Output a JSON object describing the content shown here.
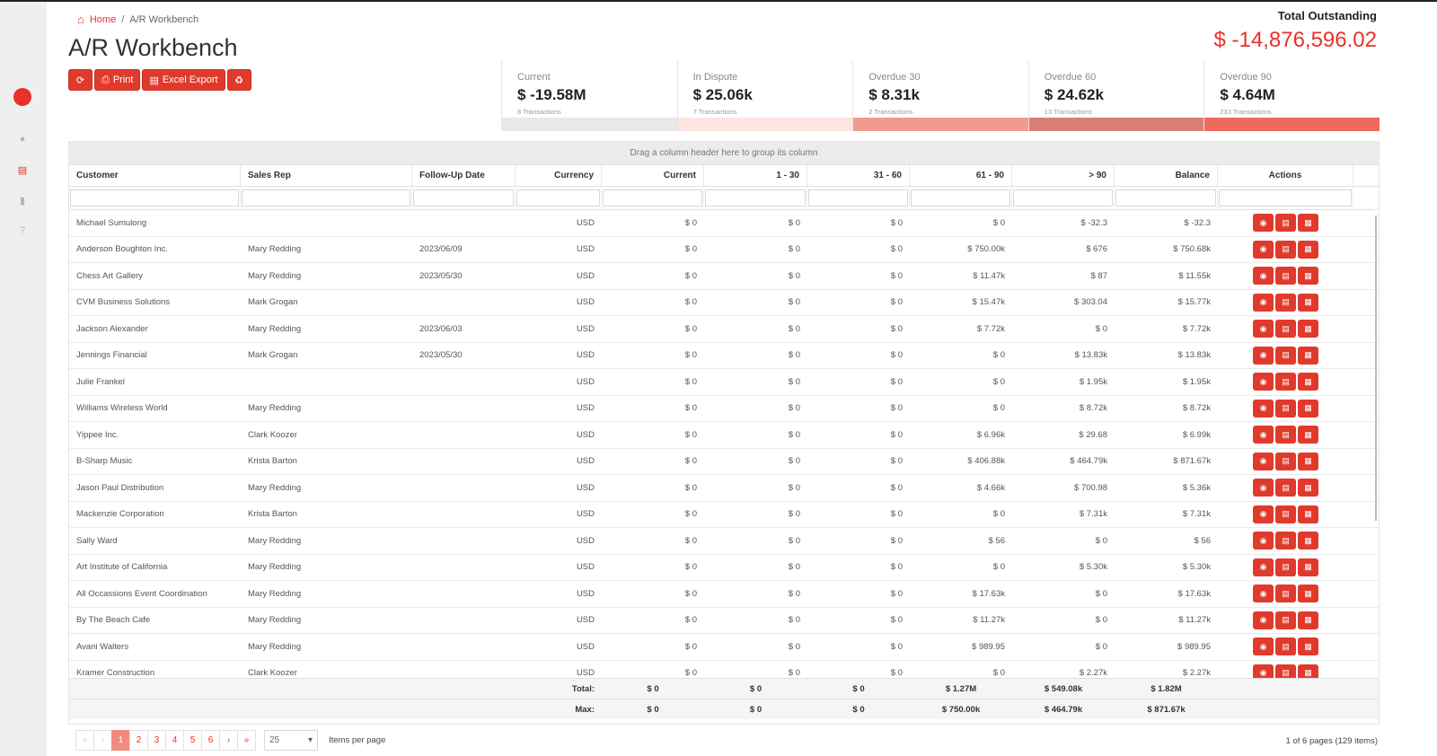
{
  "breadcrumb": {
    "home": "Home",
    "separator": "/",
    "current": "A/R Workbench"
  },
  "page_title": "A/R Workbench",
  "toolbar": {
    "print": "Print",
    "excel": "Excel Export"
  },
  "total": {
    "label": "Total Outstanding",
    "value": "$ -14,876,596.02"
  },
  "cards": [
    {
      "label": "Current",
      "value": "$ -19.58M",
      "transactions": "8 Transactions",
      "bar_color": "#e8e8e8"
    },
    {
      "label": "In Dispute",
      "value": "$ 25.06k",
      "transactions": "7 Transactions",
      "bar_color": "#fde4e1"
    },
    {
      "label": "Overdue 30",
      "value": "$ 8.31k",
      "transactions": "2 Transactions",
      "bar_color": "#f19a8e"
    },
    {
      "label": "Overdue 60",
      "value": "$ 24.62k",
      "transactions": "13 Transactions",
      "bar_color": "#d87f75"
    },
    {
      "label": "Overdue 90",
      "value": "$ 4.64M",
      "transactions": "233 Transactions",
      "bar_color": "#ee6b5c"
    }
  ],
  "grid": {
    "group_hint": "Drag a column header here to group its column",
    "columns": [
      "Customer",
      "Sales Rep",
      "Follow-Up Date",
      "Currency",
      "Current",
      "1 - 30",
      "31 - 60",
      "61 - 90",
      "> 90",
      "Balance",
      "Actions"
    ],
    "rows": [
      [
        "Michael Sumulong",
        "",
        "",
        "USD",
        "$ 0",
        "$ 0",
        "$ 0",
        "$ 0",
        "$ -32.3",
        "$ -32.3"
      ],
      [
        "Anderson Boughton Inc.",
        "Mary Redding",
        "2023/06/09",
        "USD",
        "$ 0",
        "$ 0",
        "$ 0",
        "$ 750.00k",
        "$ 676",
        "$ 750.68k"
      ],
      [
        "Chess Art Gallery",
        "Mary Redding",
        "2023/05/30",
        "USD",
        "$ 0",
        "$ 0",
        "$ 0",
        "$ 11.47k",
        "$ 87",
        "$ 11.55k"
      ],
      [
        "CVM Business Solutions",
        "Mark Grogan",
        "",
        "USD",
        "$ 0",
        "$ 0",
        "$ 0",
        "$ 15.47k",
        "$ 303.04",
        "$ 15.77k"
      ],
      [
        "Jackson Alexander",
        "Mary Redding",
        "2023/06/03",
        "USD",
        "$ 0",
        "$ 0",
        "$ 0",
        "$ 7.72k",
        "$ 0",
        "$ 7.72k"
      ],
      [
        "Jennings Financial",
        "Mark Grogan",
        "2023/05/30",
        "USD",
        "$ 0",
        "$ 0",
        "$ 0",
        "$ 0",
        "$ 13.83k",
        "$ 13.83k"
      ],
      [
        "Julie Frankel",
        "",
        "",
        "USD",
        "$ 0",
        "$ 0",
        "$ 0",
        "$ 0",
        "$ 1.95k",
        "$ 1.95k"
      ],
      [
        "Williams Wireless World",
        "Mary Redding",
        "",
        "USD",
        "$ 0",
        "$ 0",
        "$ 0",
        "$ 0",
        "$ 8.72k",
        "$ 8.72k"
      ],
      [
        "Yippee Inc.",
        "Clark Koozer",
        "",
        "USD",
        "$ 0",
        "$ 0",
        "$ 0",
        "$ 6.96k",
        "$ 29.68",
        "$ 6.99k"
      ],
      [
        "B-Sharp Music",
        "Krista Barton",
        "",
        "USD",
        "$ 0",
        "$ 0",
        "$ 0",
        "$ 406.88k",
        "$ 464.79k",
        "$ 871.67k"
      ],
      [
        "Jason Paul Distribution",
        "Mary Redding",
        "",
        "USD",
        "$ 0",
        "$ 0",
        "$ 0",
        "$ 4.66k",
        "$ 700.98",
        "$ 5.36k"
      ],
      [
        "Mackenzie Corporation",
        "Krista Barton",
        "",
        "USD",
        "$ 0",
        "$ 0",
        "$ 0",
        "$ 0",
        "$ 7.31k",
        "$ 7.31k"
      ],
      [
        "Sally Ward",
        "Mary Redding",
        "",
        "USD",
        "$ 0",
        "$ 0",
        "$ 0",
        "$ 56",
        "$ 0",
        "$ 56"
      ],
      [
        "Art Institute of California",
        "Mary Redding",
        "",
        "USD",
        "$ 0",
        "$ 0",
        "$ 0",
        "$ 0",
        "$ 5.30k",
        "$ 5.30k"
      ],
      [
        "All Occassions Event Coordination",
        "Mary Redding",
        "",
        "USD",
        "$ 0",
        "$ 0",
        "$ 0",
        "$ 17.63k",
        "$ 0",
        "$ 17.63k"
      ],
      [
        "By The Beach Cafe",
        "Mary Redding",
        "",
        "USD",
        "$ 0",
        "$ 0",
        "$ 0",
        "$ 11.27k",
        "$ 0",
        "$ 11.27k"
      ],
      [
        "Avani Walters",
        "Mary Redding",
        "",
        "USD",
        "$ 0",
        "$ 0",
        "$ 0",
        "$ 989.95",
        "$ 0",
        "$ 989.95"
      ],
      [
        "Kramer Construction",
        "Clark Koozer",
        "",
        "USD",
        "$ 0",
        "$ 0",
        "$ 0",
        "$ 0",
        "$ 2.27k",
        "$ 2.27k"
      ]
    ],
    "totals": {
      "label": "Total:",
      "values": [
        "$ 0",
        "$ 0",
        "$ 0",
        "$ 1.27M",
        "$ 549.08k",
        "$ 1.82M"
      ]
    },
    "max": {
      "label": "Max:",
      "values": [
        "$ 0",
        "$ 0",
        "$ 0",
        "$ 750.00k",
        "$ 464.79k",
        "$ 871.67k"
      ]
    }
  },
  "pager": {
    "first": "«",
    "prev": "‹",
    "pages": [
      "1",
      "2",
      "3",
      "4",
      "5",
      "6"
    ],
    "next": "›",
    "last": "»",
    "active_page": "1",
    "per_page": "25",
    "per_page_label": "Items per page",
    "info": "1 of 6 pages (129 items)"
  }
}
